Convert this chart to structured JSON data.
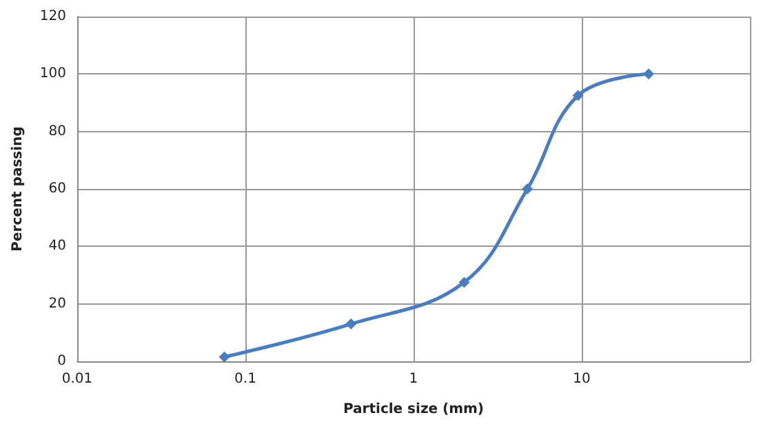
{
  "chart_data": {
    "type": "line",
    "xlabel": "Particle size (mm)",
    "ylabel": "Percent passing",
    "x": [
      0.075,
      0.425,
      2,
      4.75,
      9.5,
      25
    ],
    "series": [
      {
        "color": "#4a7dc0",
        "values": [
          1.5,
          13,
          27.5,
          60,
          92.5,
          100
        ]
      }
    ],
    "log": "x",
    "xlim": [
      0.01,
      100
    ],
    "xticks": [
      0.01,
      0.1,
      1,
      10,
      {
        "value": 100,
        "label": null
      }
    ],
    "ylim": [
      0,
      120
    ],
    "yticks": [
      0,
      20,
      40,
      60,
      80,
      100,
      120
    ],
    "grid": true,
    "marker": "diamond",
    "line_style": "solid"
  }
}
